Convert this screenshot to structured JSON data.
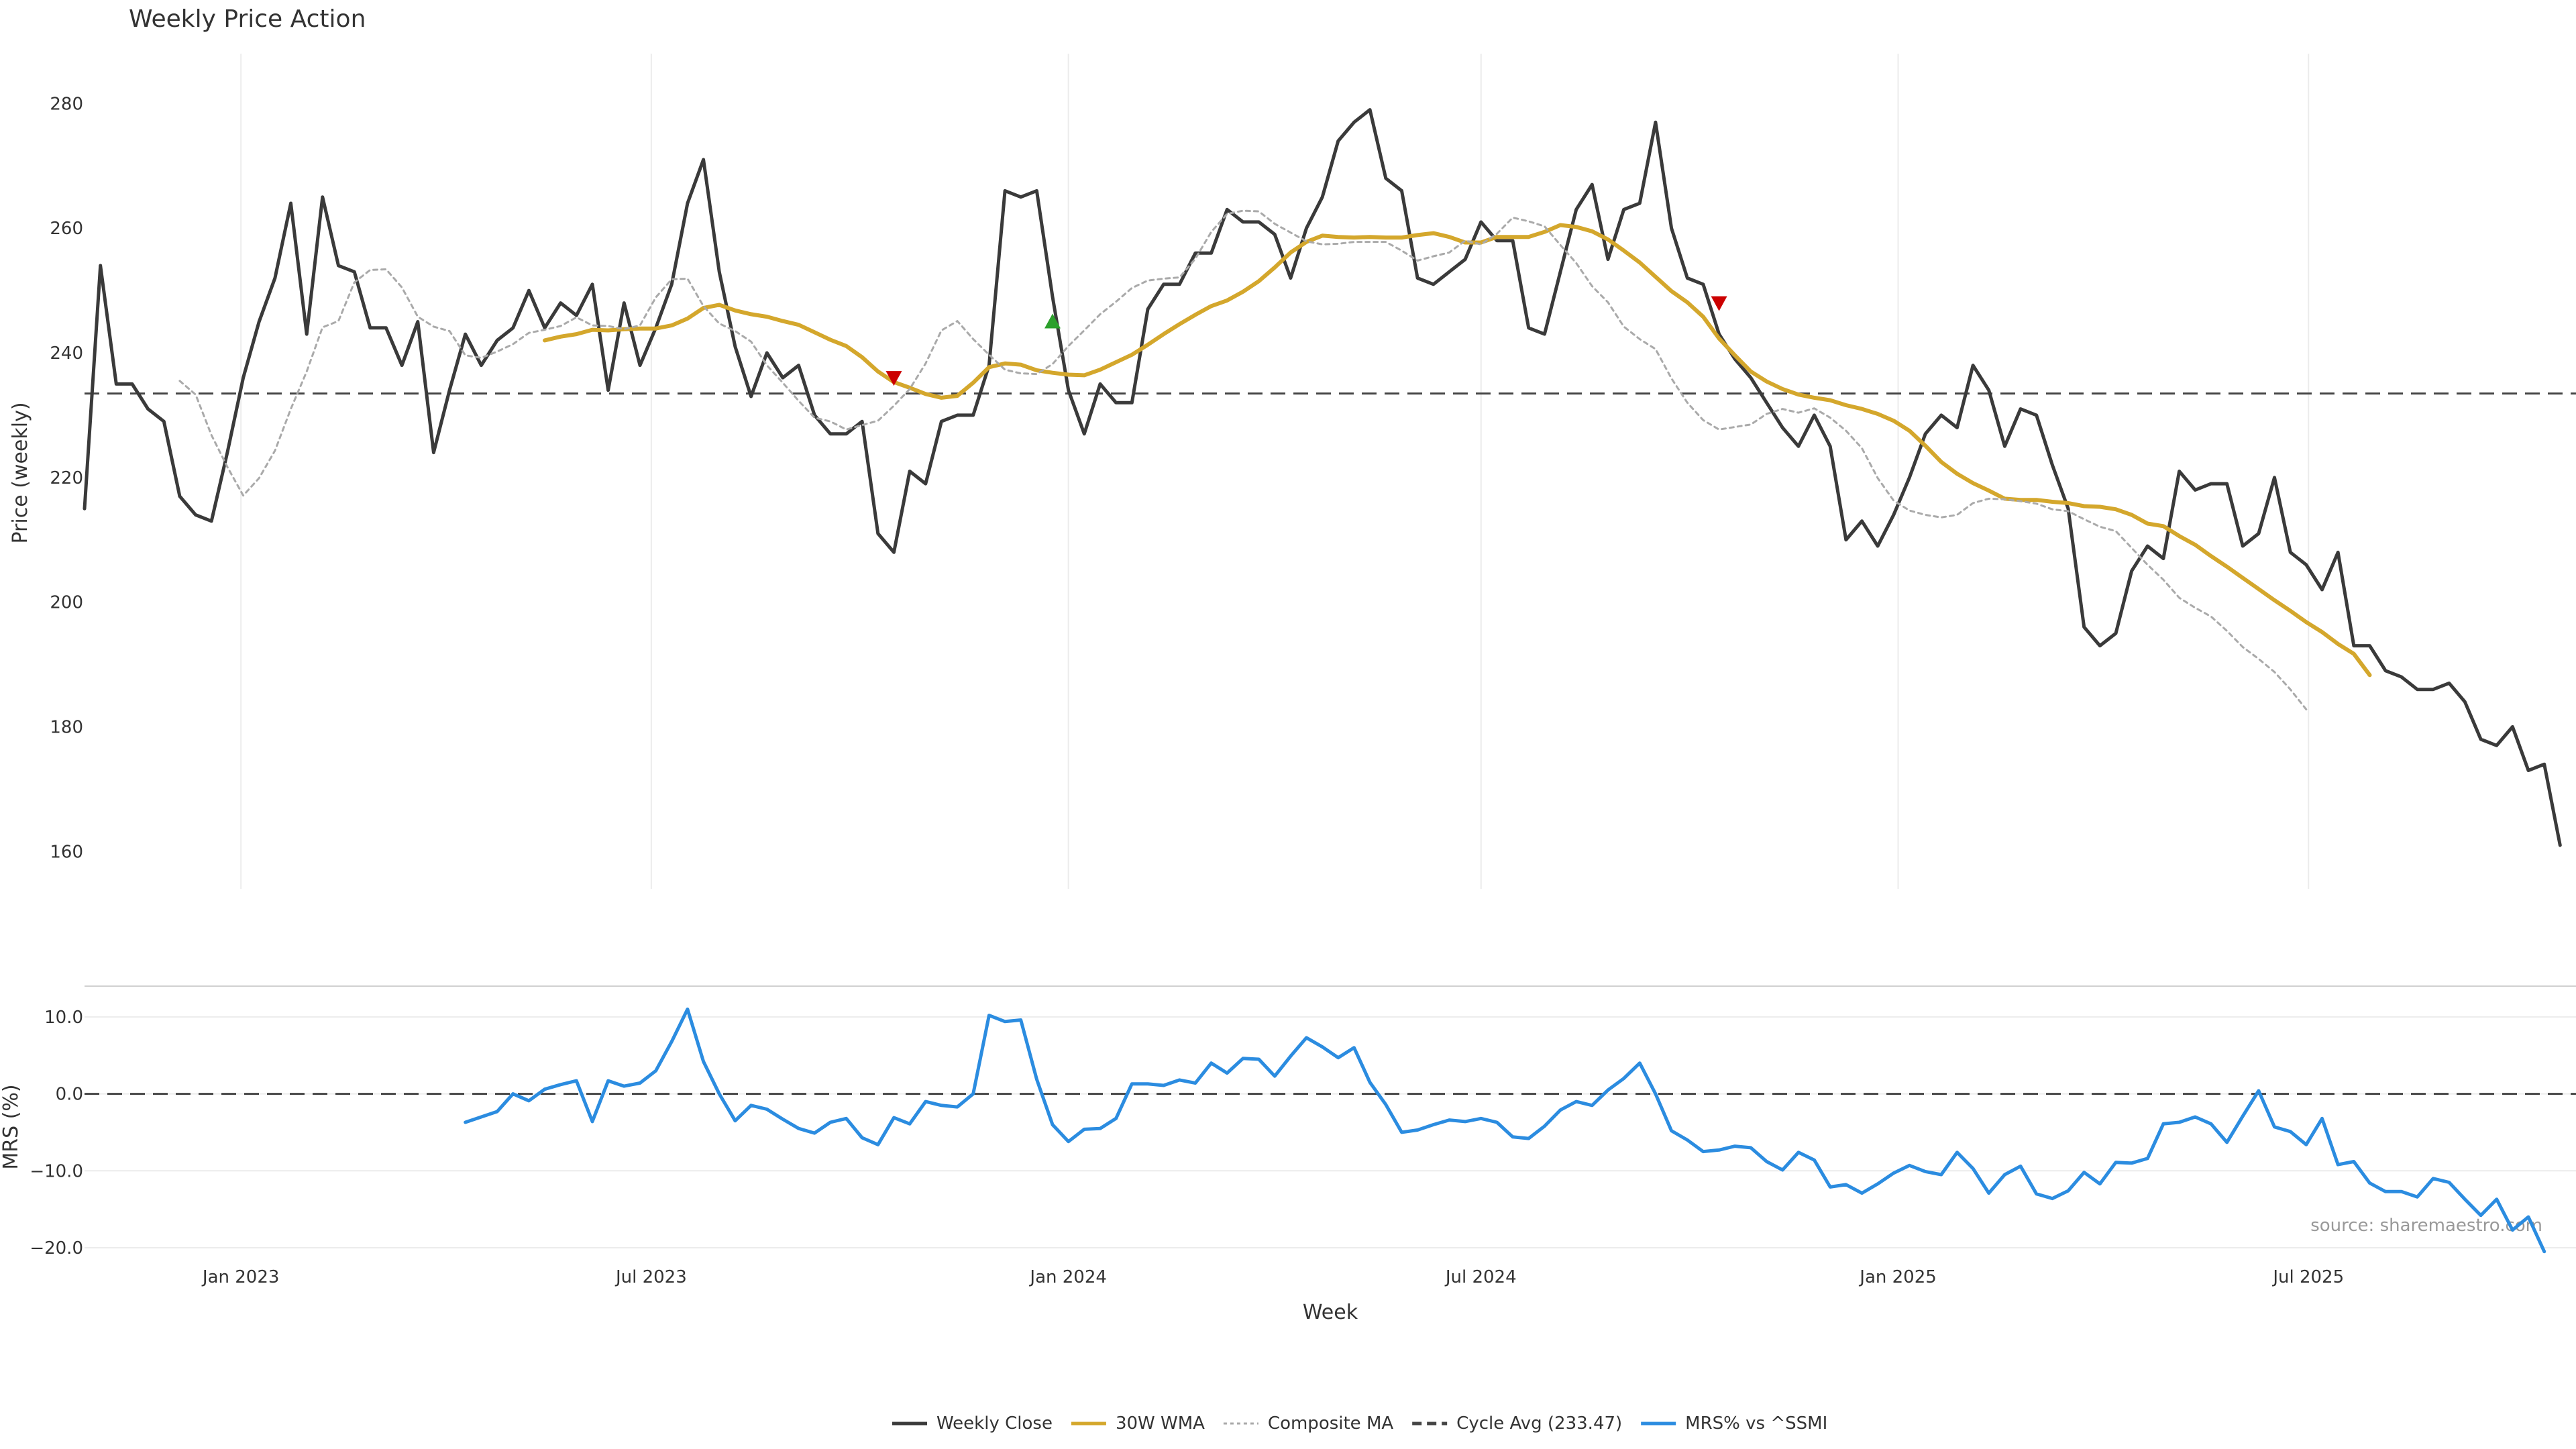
{
  "chart_data": [
    {
      "type": "line",
      "title": "Weekly Price Action",
      "xlabel": "",
      "ylabel": "Price (weekly)",
      "ylim": [
        154,
        288
      ],
      "yticks": [
        160,
        180,
        200,
        220,
        240,
        260,
        280
      ],
      "x_range": [
        "2022-10-24",
        "2025-10-27"
      ],
      "xticks": [
        {
          "date": "2023-01-01",
          "label": "Jan 2023"
        },
        {
          "date": "2023-07-01",
          "label": "Jul 2023"
        },
        {
          "date": "2024-01-01",
          "label": "Jan 2024"
        },
        {
          "date": "2024-07-01",
          "label": "Jul 2024"
        },
        {
          "date": "2025-01-01",
          "label": "Jan 2025"
        },
        {
          "date": "2025-07-01",
          "label": "Jul 2025"
        }
      ],
      "grid": "vertical",
      "series": [
        {
          "name": "Weekly Close",
          "color": "#3a3a3a",
          "start": "2022-10-24",
          "step_days": 7,
          "values": [
            215,
            254,
            235,
            235,
            231,
            229,
            217,
            214,
            213,
            224,
            236,
            245,
            252,
            264,
            243,
            265,
            254,
            253,
            244,
            244,
            238,
            245,
            224,
            234,
            243,
            238,
            242,
            244,
            250,
            244,
            248,
            246,
            251,
            234,
            248,
            238,
            244,
            251,
            264,
            271,
            253,
            241,
            233,
            240,
            236,
            238,
            230,
            227,
            227,
            229,
            211,
            208,
            221,
            219,
            229,
            230,
            230,
            238,
            266,
            265,
            266,
            249,
            234,
            227,
            235,
            232,
            232,
            247,
            251,
            251,
            256,
            256,
            263,
            261,
            261,
            259,
            252,
            260,
            265,
            274,
            277,
            279,
            268,
            266,
            252,
            251,
            253,
            255,
            261,
            258,
            258,
            244,
            243,
            253,
            263,
            267,
            255,
            263,
            264,
            277,
            260,
            252,
            251,
            243,
            239,
            236,
            232,
            228,
            225,
            230,
            225,
            210,
            213,
            209,
            214,
            220,
            227,
            230,
            228,
            238,
            234,
            225,
            231,
            230,
            222,
            215,
            196,
            193,
            195,
            205,
            209,
            207,
            221,
            218,
            219,
            219,
            209,
            211,
            220,
            208,
            206,
            202,
            208,
            193,
            193,
            189,
            188,
            186,
            186,
            187,
            184,
            178,
            177,
            180,
            173,
            174,
            161
          ]
        },
        {
          "name": "30W WMA",
          "color": "#d4a72c",
          "start": "2023-05-15",
          "step_days": 7,
          "values": [
            242,
            242.6,
            243,
            243.7,
            243.6,
            243.8,
            243.9,
            243.9,
            244.4,
            245.5,
            247.2,
            247.7,
            246.8,
            246.2,
            245.8,
            245.1,
            244.5,
            243.3,
            242.1,
            241.1,
            239.3,
            237,
            235.3,
            234.4,
            233.4,
            232.8,
            233.1,
            235.2,
            237.7,
            238.3,
            238.1,
            237.2,
            236.8,
            236.5,
            236.4,
            237.3,
            238.5,
            239.7,
            241.3,
            243,
            244.6,
            246.1,
            247.5,
            248.4,
            249.8,
            251.5,
            253.7,
            256.1,
            257.8,
            258.8,
            258.6,
            258.5,
            258.6,
            258.5,
            258.5,
            258.9,
            259.2,
            258.6,
            257.7,
            257.7,
            258.6,
            258.6,
            258.6,
            259.4,
            260.5,
            260.2,
            259.5,
            258.2,
            256.4,
            254.5,
            252.2,
            249.9,
            248.1,
            245.8,
            242.3,
            239.6,
            237,
            235.4,
            234.2,
            233.3,
            232.8,
            232.4,
            231.6,
            231,
            230.2,
            229.1,
            227.5,
            225.1,
            222.5,
            220.6,
            219.1,
            217.9,
            216.6,
            216.4,
            216.4,
            216.1,
            215.9,
            215.4,
            215.3,
            214.9,
            214,
            212.6,
            212.2,
            210.6,
            209.2,
            207.4,
            205.7,
            203.9,
            202.1,
            200.3,
            198.6,
            196.8,
            195.2,
            193.3,
            191.7,
            188.3
          ]
        },
        {
          "name": "Composite MA",
          "color": "#aaaaaa",
          "start": "2022-12-05",
          "step_days": 7,
          "values": [
            235.5,
            233.3,
            226.8,
            221.7,
            217.1,
            219.9,
            224.3,
            231,
            237,
            244.1,
            245.1,
            251.3,
            253.3,
            253.4,
            250.5,
            245.8,
            244.2,
            243.5,
            239.6,
            239.2,
            240.2,
            241.4,
            243.2,
            243.7,
            244.3,
            245.7,
            244.4,
            244.3,
            243.8,
            244.4,
            248.9,
            251.8,
            251.9,
            247.5,
            244.7,
            243.5,
            241.8,
            238,
            235.2,
            232.3,
            229.6,
            229,
            227.7,
            228.4,
            229.1,
            231.5,
            234.2,
            238.3,
            243.6,
            245.1,
            242.2,
            239.7,
            237.3,
            236.7,
            236.6,
            238.2,
            241.1,
            243.6,
            246.2,
            248.2,
            250.4,
            251.6,
            251.9,
            252.1,
            255.1,
            259.4,
            262.3,
            262.8,
            262.7,
            260.7,
            259.3,
            257.9,
            257.4,
            257.5,
            257.8,
            257.8,
            257.8,
            256.4,
            254.8,
            255.5,
            256.1,
            258,
            257.4,
            259.1,
            261.7,
            261.1,
            260.3,
            257.3,
            254.4,
            250.7,
            248.1,
            244.2,
            242.2,
            240.6,
            235.9,
            232,
            229.2,
            227.7,
            228.1,
            228.5,
            230.2,
            231,
            230.4,
            231.1,
            229.6,
            227.5,
            224.7,
            219.9,
            216.3,
            214.7,
            214,
            213.6,
            214,
            215.9,
            216.6,
            216.5,
            216.2,
            215.8,
            214.9,
            214.6,
            213.3,
            212.1,
            211.4,
            208.7,
            206,
            203.6,
            200.7,
            199.1,
            197.7,
            195.4,
            192.8,
            190.9,
            188.8,
            186,
            182.8
          ]
        }
      ],
      "reference_line": {
        "name": "Cycle Avg (233.47)",
        "value": 233.47,
        "color": "#444444"
      },
      "markers": [
        {
          "date": "2023-10-16",
          "value": 236,
          "direction": "down",
          "color": "#cc0000"
        },
        {
          "date": "2023-12-25",
          "value": 245,
          "direction": "up",
          "color": "#2ca02c"
        },
        {
          "date": "2024-10-14",
          "value": 248,
          "direction": "down",
          "color": "#cc0000"
        }
      ]
    },
    {
      "type": "line",
      "title": "",
      "xlabel": "Week",
      "ylabel": "MRS (%)",
      "ylim": [
        -20,
        14
      ],
      "yticks": [
        -20,
        -10,
        0,
        10
      ],
      "ytick_labels": [
        "−20.0",
        "−10.0",
        "0.0",
        "10.0"
      ],
      "x_range": [
        "2022-10-24",
        "2025-10-27"
      ],
      "xticks": [
        {
          "date": "2023-01-01",
          "label": "Jan 2023"
        },
        {
          "date": "2023-07-01",
          "label": "Jul 2023"
        },
        {
          "date": "2024-01-01",
          "label": "Jan 2024"
        },
        {
          "date": "2024-07-01",
          "label": "Jul 2024"
        },
        {
          "date": "2025-01-01",
          "label": "Jan 2025"
        },
        {
          "date": "2025-07-01",
          "label": "Jul 2025"
        }
      ],
      "grid": "horizontal",
      "series": [
        {
          "name": "MRS% vs ^SSMI",
          "color": "#2b8ce0",
          "start": "2023-04-10",
          "step_days": 7,
          "values": [
            -3.7,
            -3,
            -2.3,
            0,
            -0.9,
            0.6,
            1.2,
            1.7,
            -3.6,
            1.7,
            1,
            1.4,
            3,
            6.8,
            11,
            4.2,
            0,
            -3.5,
            -1.5,
            -2,
            -3.3,
            -4.5,
            -5.1,
            -3.7,
            -3.2,
            -5.7,
            -6.6,
            -3.1,
            -3.9,
            -1,
            -1.5,
            -1.7,
            0,
            10.2,
            9.4,
            9.6,
            1.9,
            -4,
            -6.2,
            -4.6,
            -4.5,
            -3.2,
            1.3,
            1.3,
            1.1,
            1.8,
            1.4,
            4,
            2.7,
            4.6,
            4.5,
            2.3,
            4.9,
            7.3,
            6.1,
            4.7,
            6,
            1.5,
            -1.4,
            -5,
            -4.7,
            -4,
            -3.4,
            -3.6,
            -3.2,
            -3.7,
            -5.6,
            -5.8,
            -4.2,
            -2.1,
            -1,
            -1.5,
            0.5,
            2,
            4,
            0,
            -4.8,
            -6,
            -7.5,
            -7.3,
            -6.8,
            -7,
            -8.8,
            -9.9,
            -7.6,
            -8.6,
            -12.1,
            -11.8,
            -12.9,
            -11.7,
            -10.3,
            -9.3,
            -10.1,
            -10.5,
            -7.6,
            -9.7,
            -12.9,
            -10.5,
            -9.4,
            -13,
            -13.6,
            -12.6,
            -10.2,
            -11.7,
            -8.9,
            -9,
            -8.4,
            -3.9,
            -3.7,
            -3,
            -3.9,
            -6.3,
            -2.9,
            0.4,
            -4.3,
            -4.9,
            -6.6,
            -3.2,
            -9.2,
            -8.8,
            -11.6,
            -12.7,
            -12.7,
            -13.4,
            -11,
            -11.5,
            -13.7,
            -15.8,
            -13.7,
            -17.7,
            -16,
            -20.5
          ]
        }
      ],
      "reference_line": {
        "name": "zero",
        "value": 0,
        "color": "#444444"
      },
      "annotation": "source: sharemaestro.com"
    }
  ],
  "legend": [
    {
      "label": "Weekly Close",
      "style": "solid",
      "color": "#3a3a3a"
    },
    {
      "label": "30W WMA",
      "style": "solid",
      "color": "#d4a72c"
    },
    {
      "label": "Composite MA",
      "style": "dotted",
      "color": "#aaaaaa"
    },
    {
      "label": "Cycle Avg (233.47)",
      "style": "dashed",
      "color": "#444444"
    },
    {
      "label": "MRS% vs ^SSMI",
      "style": "solid",
      "color": "#2b8ce0"
    }
  ]
}
